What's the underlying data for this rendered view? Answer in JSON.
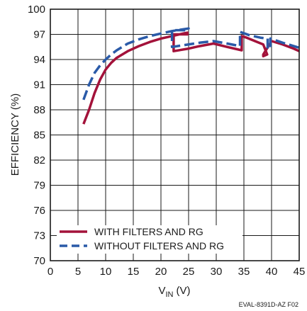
{
  "chart_data": {
    "type": "line",
    "title": "",
    "xlabel": "V",
    "xlabel_sub": "IN",
    "xlabel_unit": "(V)",
    "ylabel": "EFFICIENCY (%)",
    "xlim": [
      0,
      45
    ],
    "ylim": [
      70,
      100
    ],
    "xticks": [
      0,
      5,
      10,
      15,
      20,
      25,
      30,
      35,
      40,
      45
    ],
    "yticks": [
      70,
      73,
      76,
      79,
      82,
      85,
      88,
      91,
      94,
      97,
      100
    ],
    "grid": true,
    "legend_position": "bottom-left",
    "footnote": "EVAL-8391D-AZ F02",
    "series": [
      {
        "name": "WITH FILTERS AND RG",
        "color": "#a3123a",
        "dash": "solid",
        "points": [
          [
            6,
            86.3
          ],
          [
            7,
            88.0
          ],
          [
            8,
            90.0
          ],
          [
            9,
            91.6
          ],
          [
            10,
            92.8
          ],
          [
            11,
            93.6
          ],
          [
            12,
            94.2
          ],
          [
            14,
            95.0
          ],
          [
            16,
            95.6
          ],
          [
            18,
            96.1
          ],
          [
            20,
            96.5
          ],
          [
            22,
            96.8
          ],
          [
            24,
            97.1
          ],
          [
            24.8,
            97.2
          ],
          [
            24.8,
            97.0
          ],
          [
            22.3,
            97.0
          ],
          [
            22.3,
            95.0
          ],
          [
            25,
            95.3
          ],
          [
            27,
            95.6
          ],
          [
            29.5,
            95.9
          ],
          [
            32,
            95.5
          ],
          [
            34.6,
            95.1
          ],
          [
            34.6,
            96.8
          ],
          [
            35.5,
            96.6
          ],
          [
            37,
            96.2
          ],
          [
            38.5,
            95.8
          ],
          [
            39.2,
            94.6
          ],
          [
            38.5,
            94.4
          ],
          [
            38.5,
            94.6
          ],
          [
            40,
            96.2
          ],
          [
            42,
            95.8
          ],
          [
            44,
            95.3
          ],
          [
            45,
            95.0
          ]
        ]
      },
      {
        "name": "WITHOUT FILTERS AND RG",
        "color": "#2a5aa8",
        "dash": "dashed",
        "points": [
          [
            6,
            89.2
          ],
          [
            7,
            91.0
          ],
          [
            8,
            92.4
          ],
          [
            9,
            93.3
          ],
          [
            10,
            94.0
          ],
          [
            11,
            94.6
          ],
          [
            12,
            95.1
          ],
          [
            14,
            95.9
          ],
          [
            16,
            96.4
          ],
          [
            18,
            96.8
          ],
          [
            20,
            97.1
          ],
          [
            22,
            97.4
          ],
          [
            25,
            97.7
          ],
          [
            25,
            97.5
          ],
          [
            22,
            97.5
          ],
          [
            22,
            95.5
          ],
          [
            24,
            95.7
          ],
          [
            27,
            96.0
          ],
          [
            29.5,
            96.2
          ],
          [
            32,
            95.9
          ],
          [
            34.3,
            95.6
          ],
          [
            34.3,
            97.3
          ],
          [
            36,
            96.9
          ],
          [
            38,
            96.6
          ],
          [
            39.3,
            96.5
          ],
          [
            39.3,
            95.3
          ],
          [
            39.8,
            95.3
          ],
          [
            39.8,
            96.5
          ],
          [
            42,
            96.0
          ],
          [
            45,
            95.4
          ]
        ]
      }
    ]
  }
}
